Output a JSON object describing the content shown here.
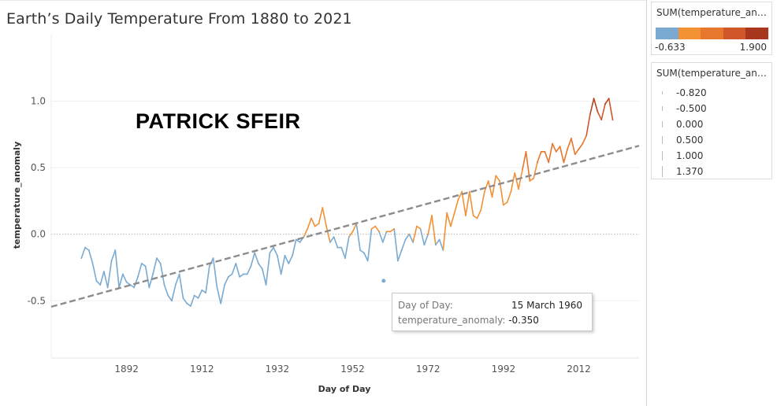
{
  "chart_title": "Earth’s Daily Temperature From 1880 to 2021",
  "watermark": "PATRICK SFEIR",
  "tooltip": {
    "label1": "Day of Day:",
    "value1": "15 March 1960",
    "label2": "temperature_anomaly:",
    "value2": "-0.350"
  },
  "legend_color": {
    "title": "SUM(temperature_ano...",
    "min_label": "-0.633",
    "max_label": "1.900",
    "colors": [
      "#7aaad1",
      "#f39135",
      "#e8772e",
      "#d0572a",
      "#a8371d"
    ]
  },
  "legend_size": {
    "title": "SUM(temperature_ano...",
    "items": [
      "-0.820",
      "-0.500",
      "0.000",
      "0.500",
      "1.000",
      "1.370"
    ]
  },
  "colors": {
    "negative": "#7aaad1",
    "positive": "#f39135",
    "hot": "#e8772e",
    "hotter": "#d0572a",
    "hottest": "#b5441c",
    "trend": "#8c8c8c"
  },
  "chart_data": {
    "type": "line",
    "title": "Earth’s Daily Temperature From 1880 to 2021",
    "xlabel": "Day of Day",
    "ylabel": "temperature_anomaly",
    "x_ticks": [
      1892,
      1912,
      1932,
      1952,
      1972,
      1992,
      2012
    ],
    "y_ticks": [
      -0.5,
      0.0,
      0.5,
      1.0
    ],
    "y_tick_labels": [
      "-0.5",
      "0.0",
      "0.5",
      "1.0"
    ],
    "xlim": [
      1872,
      2028
    ],
    "ylim": [
      -0.93,
      1.5
    ],
    "gridlines": true,
    "zero_reference_line": true,
    "series": [
      {
        "x": [
          1880,
          1881,
          1882,
          1883,
          1884,
          1885,
          1886,
          1887,
          1888,
          1889,
          1890,
          1891,
          1892,
          1893,
          1894,
          1895,
          1896,
          1897,
          1898,
          1899,
          1900,
          1901,
          1902,
          1903,
          1904,
          1905,
          1906,
          1907,
          1908,
          1909,
          1910,
          1911,
          1912,
          1913,
          1914,
          1915,
          1916,
          1917,
          1918,
          1919,
          1920,
          1921,
          1922,
          1923,
          1924,
          1925,
          1926,
          1927,
          1928,
          1929,
          1930,
          1931,
          1932,
          1933,
          1934,
          1935,
          1936,
          1937,
          1938,
          1939,
          1940,
          1941,
          1942,
          1943,
          1944,
          1945,
          1946,
          1947,
          1948,
          1949,
          1950,
          1951,
          1952,
          1953,
          1954,
          1955,
          1956,
          1957,
          1958,
          1959,
          1960,
          1961,
          1962,
          1963,
          1964,
          1965,
          1966,
          1967,
          1968,
          1969,
          1970,
          1971,
          1972,
          1973,
          1974,
          1975,
          1976,
          1977,
          1978,
          1979,
          1980,
          1981,
          1982,
          1983,
          1984,
          1985,
          1986,
          1987,
          1988,
          1989,
          1990,
          1991,
          1992,
          1993,
          1994,
          1995,
          1996,
          1997,
          1998,
          1999,
          2000,
          2001,
          2002,
          2003,
          2004,
          2005,
          2006,
          2007,
          2008,
          2009,
          2010,
          2011,
          2012,
          2013,
          2014,
          2015,
          2016,
          2017,
          2018,
          2019,
          2020,
          2021
        ],
        "values": [
          -0.18,
          -0.1,
          -0.12,
          -0.22,
          -0.35,
          -0.38,
          -0.28,
          -0.4,
          -0.2,
          -0.12,
          -0.4,
          -0.3,
          -0.36,
          -0.38,
          -0.4,
          -0.32,
          -0.22,
          -0.24,
          -0.4,
          -0.3,
          -0.18,
          -0.22,
          -0.38,
          -0.46,
          -0.5,
          -0.38,
          -0.3,
          -0.48,
          -0.52,
          -0.54,
          -0.46,
          -0.48,
          -0.42,
          -0.44,
          -0.24,
          -0.18,
          -0.4,
          -0.52,
          -0.38,
          -0.32,
          -0.3,
          -0.22,
          -0.32,
          -0.3,
          -0.3,
          -0.24,
          -0.14,
          -0.22,
          -0.26,
          -0.38,
          -0.14,
          -0.1,
          -0.16,
          -0.3,
          -0.16,
          -0.22,
          -0.16,
          -0.04,
          -0.06,
          -0.02,
          0.04,
          0.12,
          0.06,
          0.08,
          0.2,
          0.06,
          -0.06,
          -0.02,
          -0.1,
          -0.1,
          -0.18,
          -0.02,
          0.02,
          0.08,
          -0.12,
          -0.14,
          -0.2,
          0.04,
          0.06,
          0.02,
          -0.06,
          0.02,
          0.02,
          0.04,
          -0.2,
          -0.12,
          -0.04,
          0.0,
          -0.06,
          0.06,
          0.04,
          -0.08,
          0.0,
          0.14,
          -0.08,
          -0.04,
          -0.12,
          0.16,
          0.06,
          0.16,
          0.26,
          0.32,
          0.14,
          0.32,
          0.14,
          0.12,
          0.18,
          0.32,
          0.4,
          0.28,
          0.44,
          0.4,
          0.22,
          0.24,
          0.32,
          0.46,
          0.34,
          0.48,
          0.62,
          0.4,
          0.42,
          0.54,
          0.62,
          0.62,
          0.54,
          0.68,
          0.62,
          0.66,
          0.54,
          0.64,
          0.72,
          0.6,
          0.64,
          0.68,
          0.74,
          0.9,
          1.02,
          0.92,
          0.86,
          0.98,
          1.02,
          0.86
        ]
      }
    ],
    "annotated_points": [
      {
        "x": 1960.2,
        "y": -0.35
      }
    ],
    "trend_line": {
      "x": [
        1872,
        2028
      ],
      "y": [
        -0.545,
        0.665
      ]
    },
    "legend": {
      "color_range": [
        -0.633,
        1.9
      ],
      "size_values": [
        -0.82,
        -0.5,
        0.0,
        0.5,
        1.0,
        1.37
      ]
    }
  }
}
